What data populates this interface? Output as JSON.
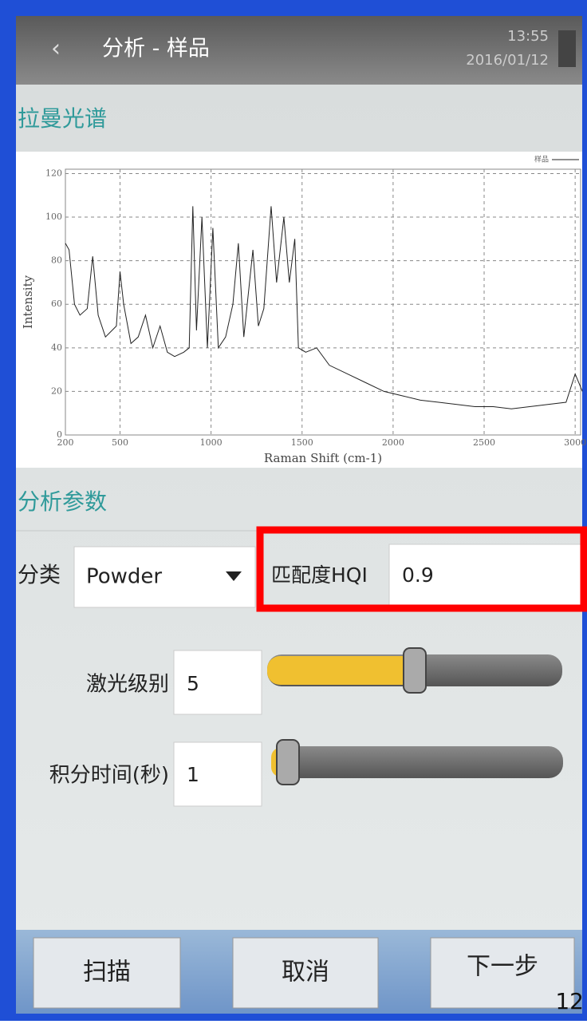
{
  "header": {
    "title": "分析 - 样品",
    "time": "13:55",
    "date": "2016/01/12"
  },
  "spectrum_section": "拉曼光谱",
  "chart_data": {
    "type": "line",
    "xlabel": "Raman Shift (cm-1)",
    "ylabel": "Intensity",
    "x": [
      200,
      220,
      250,
      280,
      320,
      350,
      380,
      420,
      480,
      500,
      520,
      560,
      600,
      640,
      680,
      720,
      760,
      800,
      850,
      880,
      900,
      920,
      950,
      980,
      1010,
      1040,
      1080,
      1120,
      1150,
      1180,
      1230,
      1260,
      1290,
      1330,
      1360,
      1400,
      1430,
      1460,
      1480,
      1520,
      1580,
      1650,
      1750,
      1850,
      1950,
      2050,
      2150,
      2250,
      2350,
      2450,
      2550,
      2650,
      2750,
      2850,
      2950,
      3000,
      3040
    ],
    "series": [
      {
        "name": "样品",
        "color": "#222222",
        "values": [
          88,
          85,
          60,
          55,
          58,
          82,
          55,
          45,
          50,
          75,
          60,
          42,
          45,
          55,
          40,
          50,
          38,
          36,
          38,
          40,
          105,
          48,
          100,
          40,
          95,
          40,
          45,
          60,
          88,
          45,
          85,
          50,
          58,
          105,
          70,
          100,
          70,
          90,
          40,
          38,
          40,
          32,
          28,
          24,
          20,
          18,
          16,
          15,
          14,
          13,
          13,
          12,
          13,
          14,
          15,
          28,
          20
        ]
      }
    ],
    "xlim": [
      200,
      3030
    ],
    "ylim": [
      0,
      122
    ],
    "xticks": [
      200,
      500,
      1000,
      1500,
      2000,
      2500,
      3000
    ],
    "yticks": [
      0,
      20,
      40,
      60,
      80,
      100,
      120
    ],
    "grid": true
  },
  "params_section": "分析参数",
  "form": {
    "category_label": "分类",
    "category_value": "Powder",
    "hqi_label": "匹配度HQI",
    "hqi_value": "0.9",
    "laser_label": "激光级别",
    "laser_value": "5",
    "time_label": "积分时间(秒)",
    "time_value": "1"
  },
  "buttons": [
    "扫描",
    "取消",
    "下一步"
  ],
  "page_number": "12"
}
